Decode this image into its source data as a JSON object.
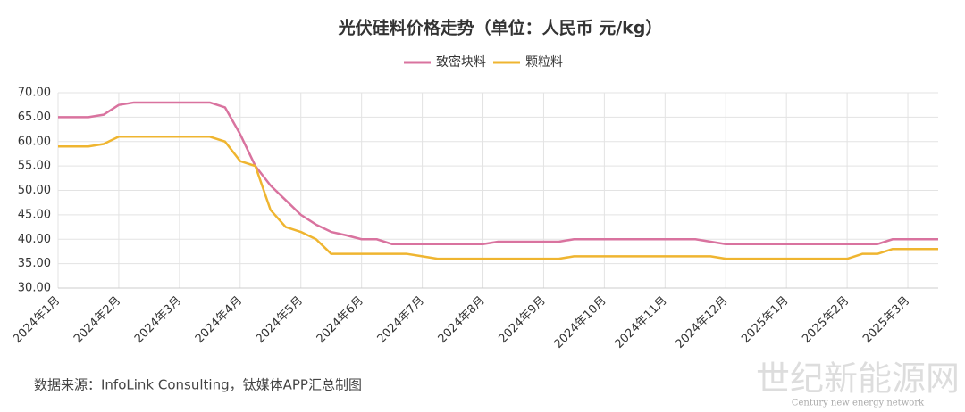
{
  "chart_data": {
    "type": "line",
    "title": "光伏硅料价格走势（单位：人民币 元/kg）",
    "source": "数据来源：InfoLink Consulting，钛媒体APP汇总制图",
    "watermark": "世纪新能源网",
    "watermark_sub": "Century new energy network",
    "categories": [
      "2024年1月",
      null,
      null,
      null,
      "2024年2月",
      null,
      null,
      null,
      "2024年3月",
      null,
      null,
      null,
      "2024年4月",
      null,
      null,
      null,
      "2024年5月",
      null,
      null,
      null,
      "2024年6月",
      null,
      null,
      null,
      "2024年7月",
      null,
      null,
      null,
      "2024年8月",
      null,
      null,
      null,
      "2024年9月",
      null,
      null,
      null,
      "2024年10月",
      null,
      null,
      null,
      "2024年11月",
      null,
      null,
      null,
      "2024年12月",
      null,
      null,
      null,
      "2025年1月",
      null,
      null,
      null,
      "2025年2月",
      null,
      null,
      null,
      "2025年3月",
      null,
      null
    ],
    "series": [
      {
        "name": "致密块料",
        "color": "#d9739f",
        "values": [
          65,
          65,
          65,
          65.5,
          67.5,
          68,
          68,
          68,
          68,
          68,
          68,
          67,
          61.5,
          55,
          51,
          48,
          45,
          43,
          41.5,
          40.8,
          40,
          40,
          39,
          39,
          39,
          39,
          39,
          39,
          39,
          39.5,
          39.5,
          39.5,
          39.5,
          39.5,
          40,
          40,
          40,
          40,
          40,
          40,
          40,
          40,
          40,
          39.5,
          39,
          39,
          39,
          39,
          39,
          39,
          39,
          39,
          39,
          39,
          39,
          40,
          40,
          40,
          40
        ]
      },
      {
        "name": "颗粒料",
        "color": "#efb530",
        "values": [
          59,
          59,
          59,
          59.5,
          61,
          61,
          61,
          61,
          61,
          61,
          61,
          60,
          56,
          55,
          46,
          42.5,
          41.5,
          40,
          37,
          37,
          37,
          37,
          37,
          37,
          36.5,
          36,
          36,
          36,
          36,
          36,
          36,
          36,
          36,
          36,
          36.5,
          36.5,
          36.5,
          36.5,
          36.5,
          36.5,
          36.5,
          36.5,
          36.5,
          36.5,
          36,
          36,
          36,
          36,
          36,
          36,
          36,
          36,
          36,
          37,
          37,
          38,
          38,
          38,
          38
        ]
      }
    ],
    "ylim": [
      30,
      70
    ],
    "yticks": [
      {
        "value": 30,
        "label": "30.00"
      },
      {
        "value": 35,
        "label": "35.00"
      },
      {
        "value": 40,
        "label": "40.00"
      },
      {
        "value": 45,
        "label": "45.00"
      },
      {
        "value": 50,
        "label": "50.00"
      },
      {
        "value": 55,
        "label": "55.00"
      },
      {
        "value": 60,
        "label": "60.00"
      },
      {
        "value": 65,
        "label": "65.00"
      },
      {
        "value": 70,
        "label": "70.00"
      }
    ],
    "grid": true,
    "legend": "top"
  }
}
